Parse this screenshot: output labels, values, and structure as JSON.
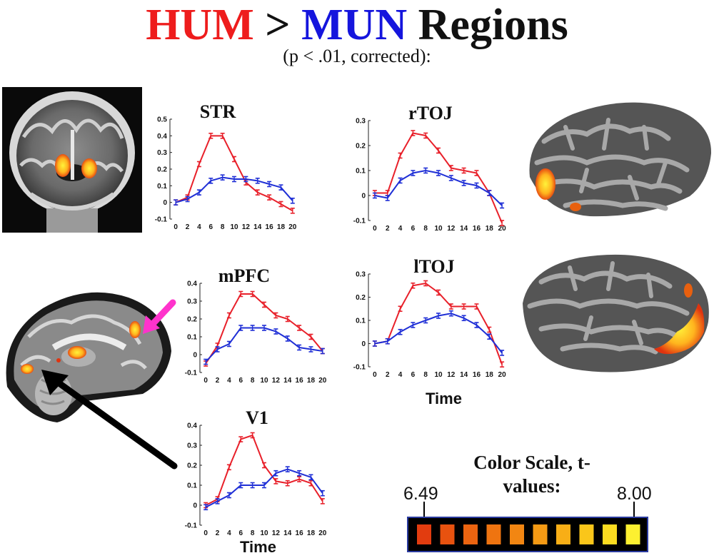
{
  "title": {
    "part1": "HUM",
    "part2": " > ",
    "part3": "MUN",
    "part4": " Regions"
  },
  "subtitle": "(p < .01, corrected):",
  "colors": {
    "hum": "#e8202a",
    "mun": "#1f2fd6",
    "arrow_pink": "#ff33cc"
  },
  "icons": [
    "coronal-brain-slice-image",
    "sagittal-brain-slice-image",
    "right-inflated-cortex-image",
    "left-inflated-cortex-image",
    "pink-arrow-icon",
    "black-arrow-icon"
  ],
  "chart_data": [
    {
      "type": "line",
      "title": "STR",
      "x": [
        0,
        2,
        4,
        6,
        8,
        10,
        12,
        14,
        16,
        18,
        20
      ],
      "ylim": [
        -0.1,
        0.5
      ],
      "yticks": [
        "-0.1",
        "0",
        "0.1",
        "0.2",
        "0.3",
        "0.4",
        "0.5"
      ],
      "xlabel": "",
      "series": [
        {
          "color": "red",
          "values": [
            0.0,
            0.03,
            0.23,
            0.4,
            0.4,
            0.26,
            0.12,
            0.06,
            0.03,
            -0.01,
            -0.05
          ]
        },
        {
          "color": "blue",
          "values": [
            0.0,
            0.02,
            0.06,
            0.13,
            0.15,
            0.14,
            0.14,
            0.13,
            0.11,
            0.09,
            0.01
          ]
        }
      ]
    },
    {
      "type": "line",
      "title": "rTOJ",
      "x": [
        0,
        2,
        4,
        6,
        8,
        10,
        12,
        14,
        16,
        18,
        20
      ],
      "ylim": [
        -0.1,
        0.3
      ],
      "yticks": [
        "-0.1",
        "0",
        "0.1",
        "0.2",
        "0.3"
      ],
      "xlabel": "",
      "series": [
        {
          "color": "red",
          "values": [
            0.01,
            0.01,
            0.16,
            0.25,
            0.24,
            0.18,
            0.11,
            0.1,
            0.09,
            0.01,
            -0.11
          ]
        },
        {
          "color": "blue",
          "values": [
            0.0,
            -0.01,
            0.06,
            0.09,
            0.1,
            0.09,
            0.07,
            0.05,
            0.04,
            0.01,
            -0.04
          ]
        }
      ]
    },
    {
      "type": "line",
      "title": "mPFC",
      "x": [
        0,
        2,
        4,
        6,
        8,
        10,
        12,
        14,
        16,
        18,
        20
      ],
      "ylim": [
        -0.1,
        0.4
      ],
      "yticks": [
        "-0.1",
        "0",
        "0.1",
        "0.2",
        "0.3",
        "0.4"
      ],
      "xlabel": "",
      "series": [
        {
          "color": "red",
          "values": [
            -0.05,
            0.05,
            0.22,
            0.34,
            0.34,
            0.28,
            0.22,
            0.2,
            0.15,
            0.1,
            0.02
          ]
        },
        {
          "color": "blue",
          "values": [
            -0.04,
            0.03,
            0.06,
            0.15,
            0.15,
            0.15,
            0.13,
            0.09,
            0.04,
            0.03,
            0.02
          ]
        }
      ]
    },
    {
      "type": "line",
      "title": "lTOJ",
      "x": [
        0,
        2,
        4,
        6,
        8,
        10,
        12,
        14,
        16,
        18,
        20
      ],
      "ylim": [
        -0.1,
        0.3
      ],
      "yticks": [
        "-0.1",
        "0",
        "0.1",
        "0.2",
        "0.3"
      ],
      "xlabel": "Time",
      "series": [
        {
          "color": "red",
          "values": [
            0.0,
            0.01,
            0.15,
            0.25,
            0.26,
            0.22,
            0.16,
            0.16,
            0.16,
            0.06,
            -0.09
          ]
        },
        {
          "color": "blue",
          "values": [
            0.0,
            0.01,
            0.05,
            0.08,
            0.1,
            0.12,
            0.13,
            0.11,
            0.08,
            0.03,
            -0.04
          ]
        }
      ]
    },
    {
      "type": "line",
      "title": "V1",
      "x": [
        0,
        2,
        4,
        6,
        8,
        10,
        12,
        14,
        16,
        18,
        20
      ],
      "ylim": [
        -0.1,
        0.4
      ],
      "yticks": [
        "-0.1",
        "0",
        "0.1",
        "0.2",
        "0.3",
        "0.4"
      ],
      "xlabel": "Time",
      "series": [
        {
          "color": "red",
          "values": [
            0.0,
            0.03,
            0.19,
            0.33,
            0.35,
            0.2,
            0.12,
            0.11,
            0.13,
            0.11,
            0.02
          ]
        },
        {
          "color": "blue",
          "values": [
            -0.01,
            0.02,
            0.05,
            0.1,
            0.1,
            0.1,
            0.16,
            0.18,
            0.16,
            0.14,
            0.06
          ]
        }
      ]
    }
  ],
  "color_scale": {
    "title": "Color Scale, t-values:",
    "min_label": "6.49",
    "max_label": "8.00",
    "swatches": [
      "#e23c0f",
      "#e8520f",
      "#ec6410",
      "#ef7410",
      "#f28612",
      "#f59a14",
      "#f8ae16",
      "#fac61a",
      "#fcdc20",
      "#fdf030"
    ]
  }
}
